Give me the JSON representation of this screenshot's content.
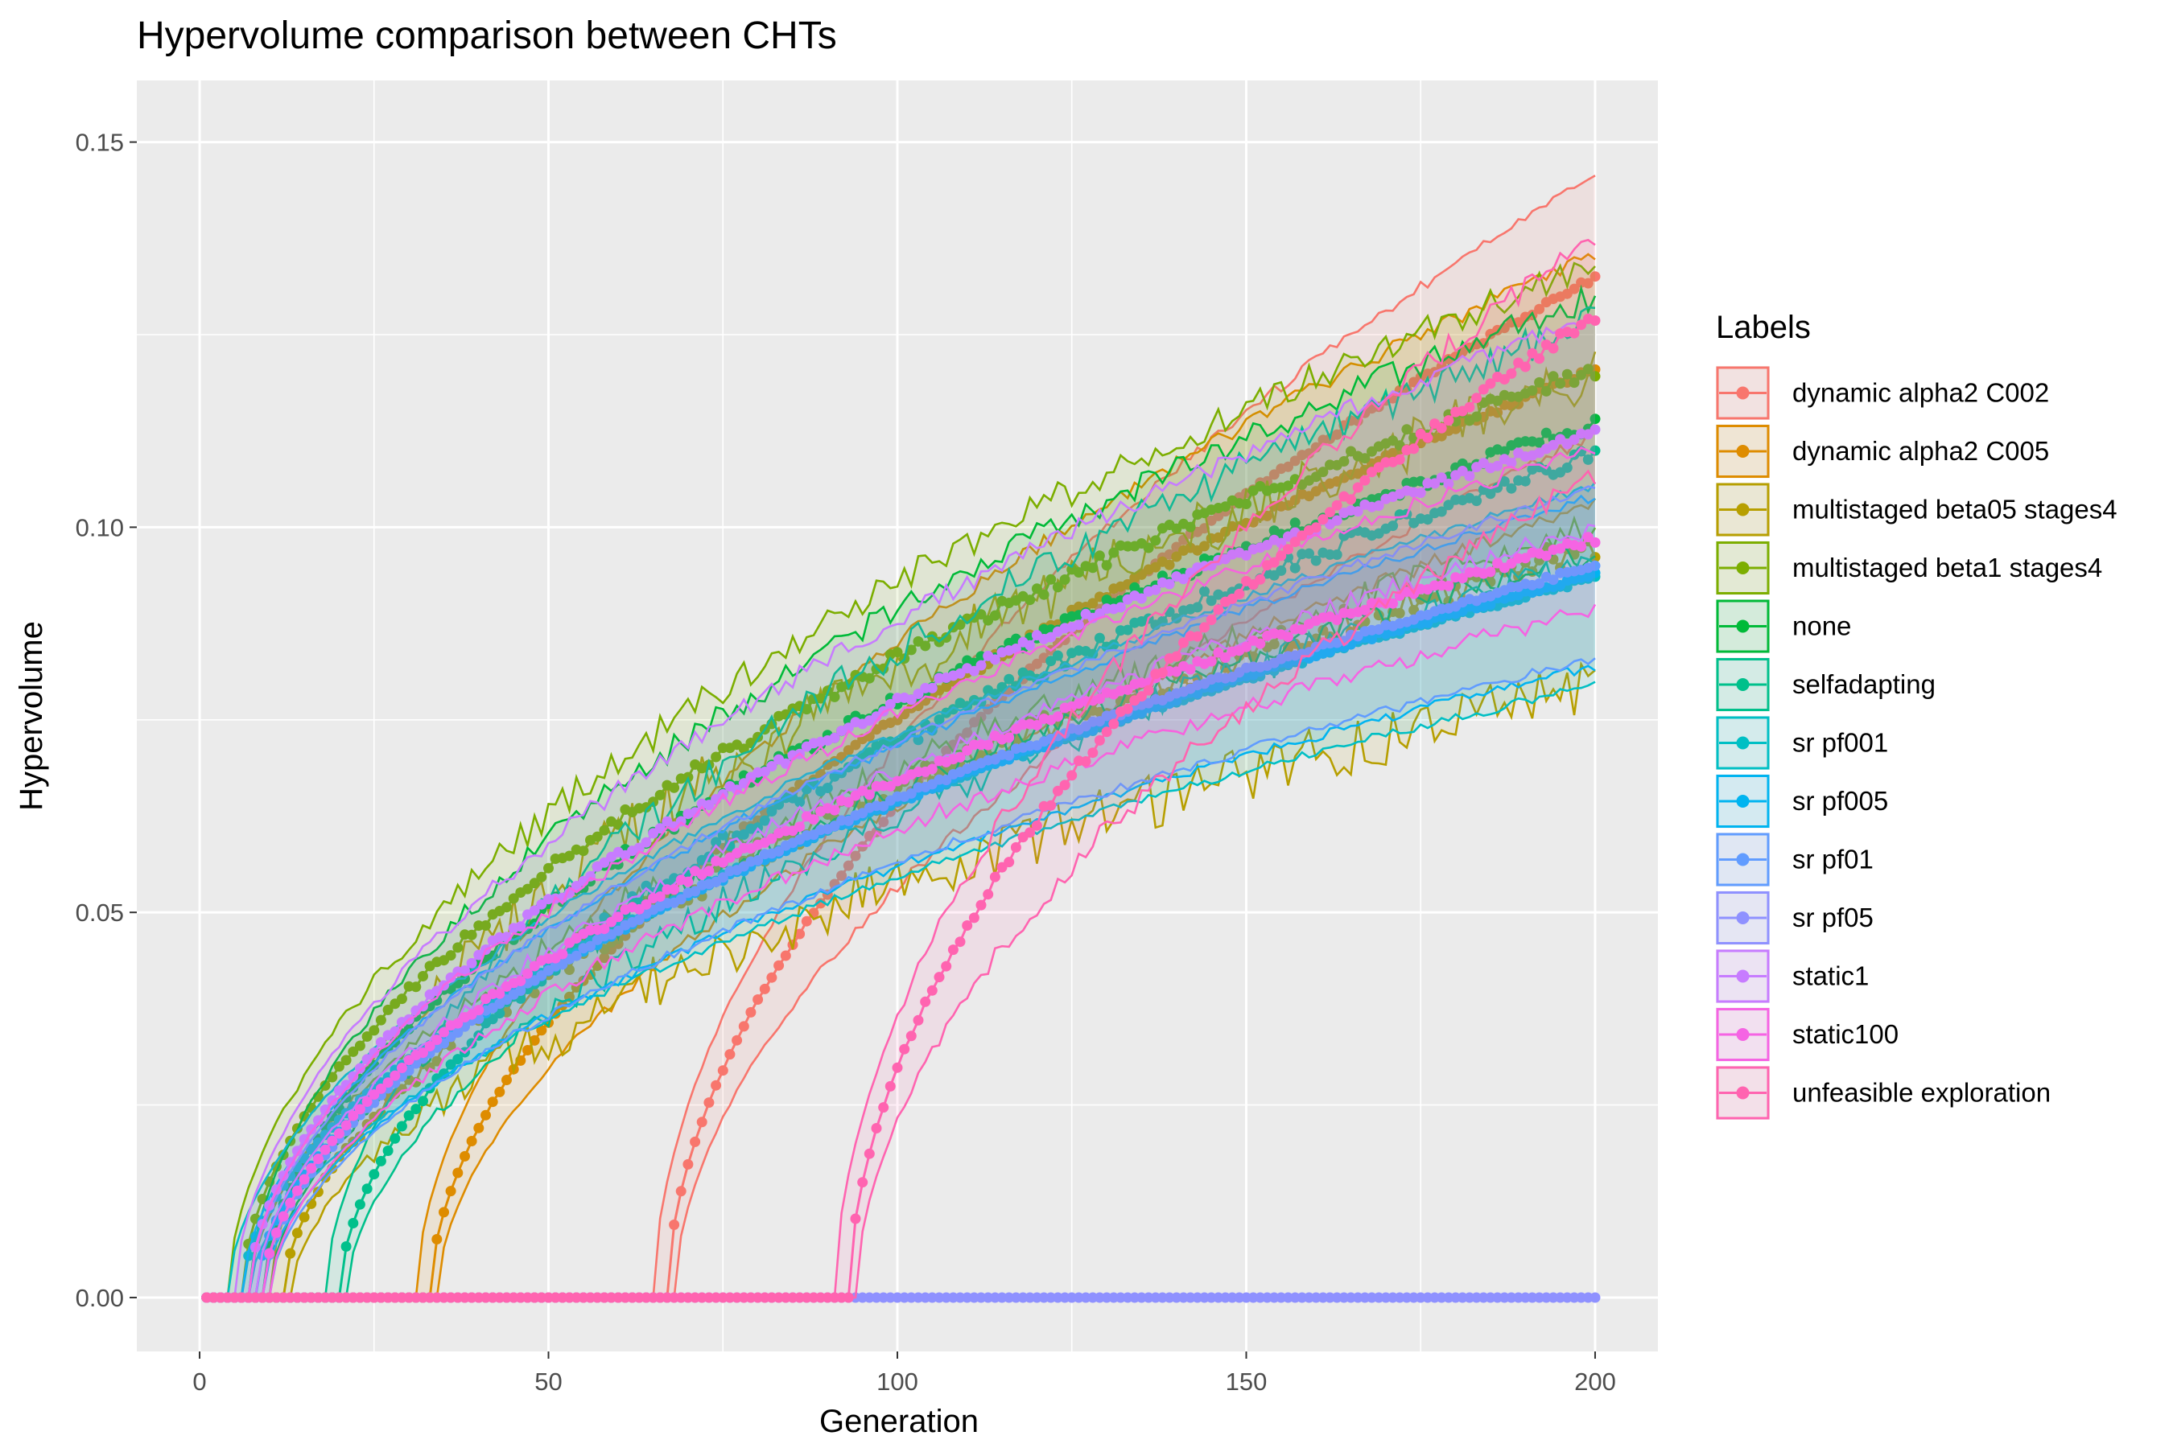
{
  "chart_data": {
    "type": "line",
    "title": "Hypervolume comparison between CHTs",
    "xlabel": "Generation",
    "ylabel": "Hypervolume",
    "xlim": [
      -9,
      209
    ],
    "ylim": [
      -0.007,
      0.158
    ],
    "xticks": [
      0,
      50,
      100,
      150,
      200
    ],
    "xtick_labels": [
      "0",
      "50",
      "100",
      "150",
      "200"
    ],
    "yticks": [
      0.0,
      0.05,
      0.1,
      0.15
    ],
    "ytick_labels": [
      "0.00",
      "0.05",
      "0.10",
      "0.15"
    ],
    "grid": true,
    "legend": {
      "title": "Labels",
      "position": "right"
    },
    "x_start": 1,
    "x_end": 200,
    "series": [
      {
        "name": "dynamic alpha2 C002",
        "color": "#F8766D",
        "onset": 67,
        "mean": 0.1325,
        "lower": 0.112,
        "upper": 0.1455,
        "noise": 0.6
      },
      {
        "name": "dynamic alpha2 C005",
        "color": "#DE8C00",
        "onset": 33,
        "mean": 0.1205,
        "lower": 0.103,
        "upper": 0.1355,
        "noise": 0.8
      },
      {
        "name": "multistaged beta05 stages4",
        "color": "#B79F00",
        "onset": 12,
        "mean": 0.0975,
        "lower": 0.0795,
        "upper": 0.1195,
        "noise": 3.0
      },
      {
        "name": "multistaged beta1 stages4",
        "color": "#7CAE00",
        "onset": 6,
        "mean": 0.1205,
        "lower": 0.1,
        "upper": 0.134,
        "noise": 1.6
      },
      {
        "name": "none",
        "color": "#00BA38",
        "onset": 9,
        "mean": 0.1135,
        "lower": 0.097,
        "upper": 0.13,
        "noise": 1.4
      },
      {
        "name": "selfadapting",
        "color": "#00C08B",
        "onset": 20,
        "mean": 0.1095,
        "lower": 0.096,
        "upper": 0.127,
        "noise": 1.8
      },
      {
        "name": "sr pf001",
        "color": "#00BFC4",
        "onset": 6,
        "mean": 0.0935,
        "lower": 0.0795,
        "upper": 0.1055,
        "noise": 0.5
      },
      {
        "name": "sr pf005",
        "color": "#00B4F0",
        "onset": 8,
        "mean": 0.094,
        "lower": 0.082,
        "upper": 0.104,
        "noise": 0.5
      },
      {
        "name": "sr pf01",
        "color": "#619CFF",
        "onset": 9,
        "mean": 0.095,
        "lower": 0.083,
        "upper": 0.105,
        "noise": 0.5
      },
      {
        "name": "sr pf05",
        "color": "#8F91FF",
        "onset": 0,
        "mean": 0.0,
        "lower": 0.0,
        "upper": 0.0,
        "noise": 0.0
      },
      {
        "name": "static1",
        "color": "#C77CFF",
        "onset": 7,
        "mean": 0.1125,
        "lower": 0.1,
        "upper": 0.1275,
        "noise": 1.0
      },
      {
        "name": "static100",
        "color": "#F564E3",
        "onset": 9,
        "mean": 0.0985,
        "lower": 0.0895,
        "upper": 0.1105,
        "noise": 0.9
      },
      {
        "name": "unfeasible exploration",
        "color": "#FF64B0",
        "onset": 93,
        "mean": 0.1275,
        "lower": 0.1065,
        "upper": 0.1375,
        "noise": 1.2
      }
    ]
  }
}
